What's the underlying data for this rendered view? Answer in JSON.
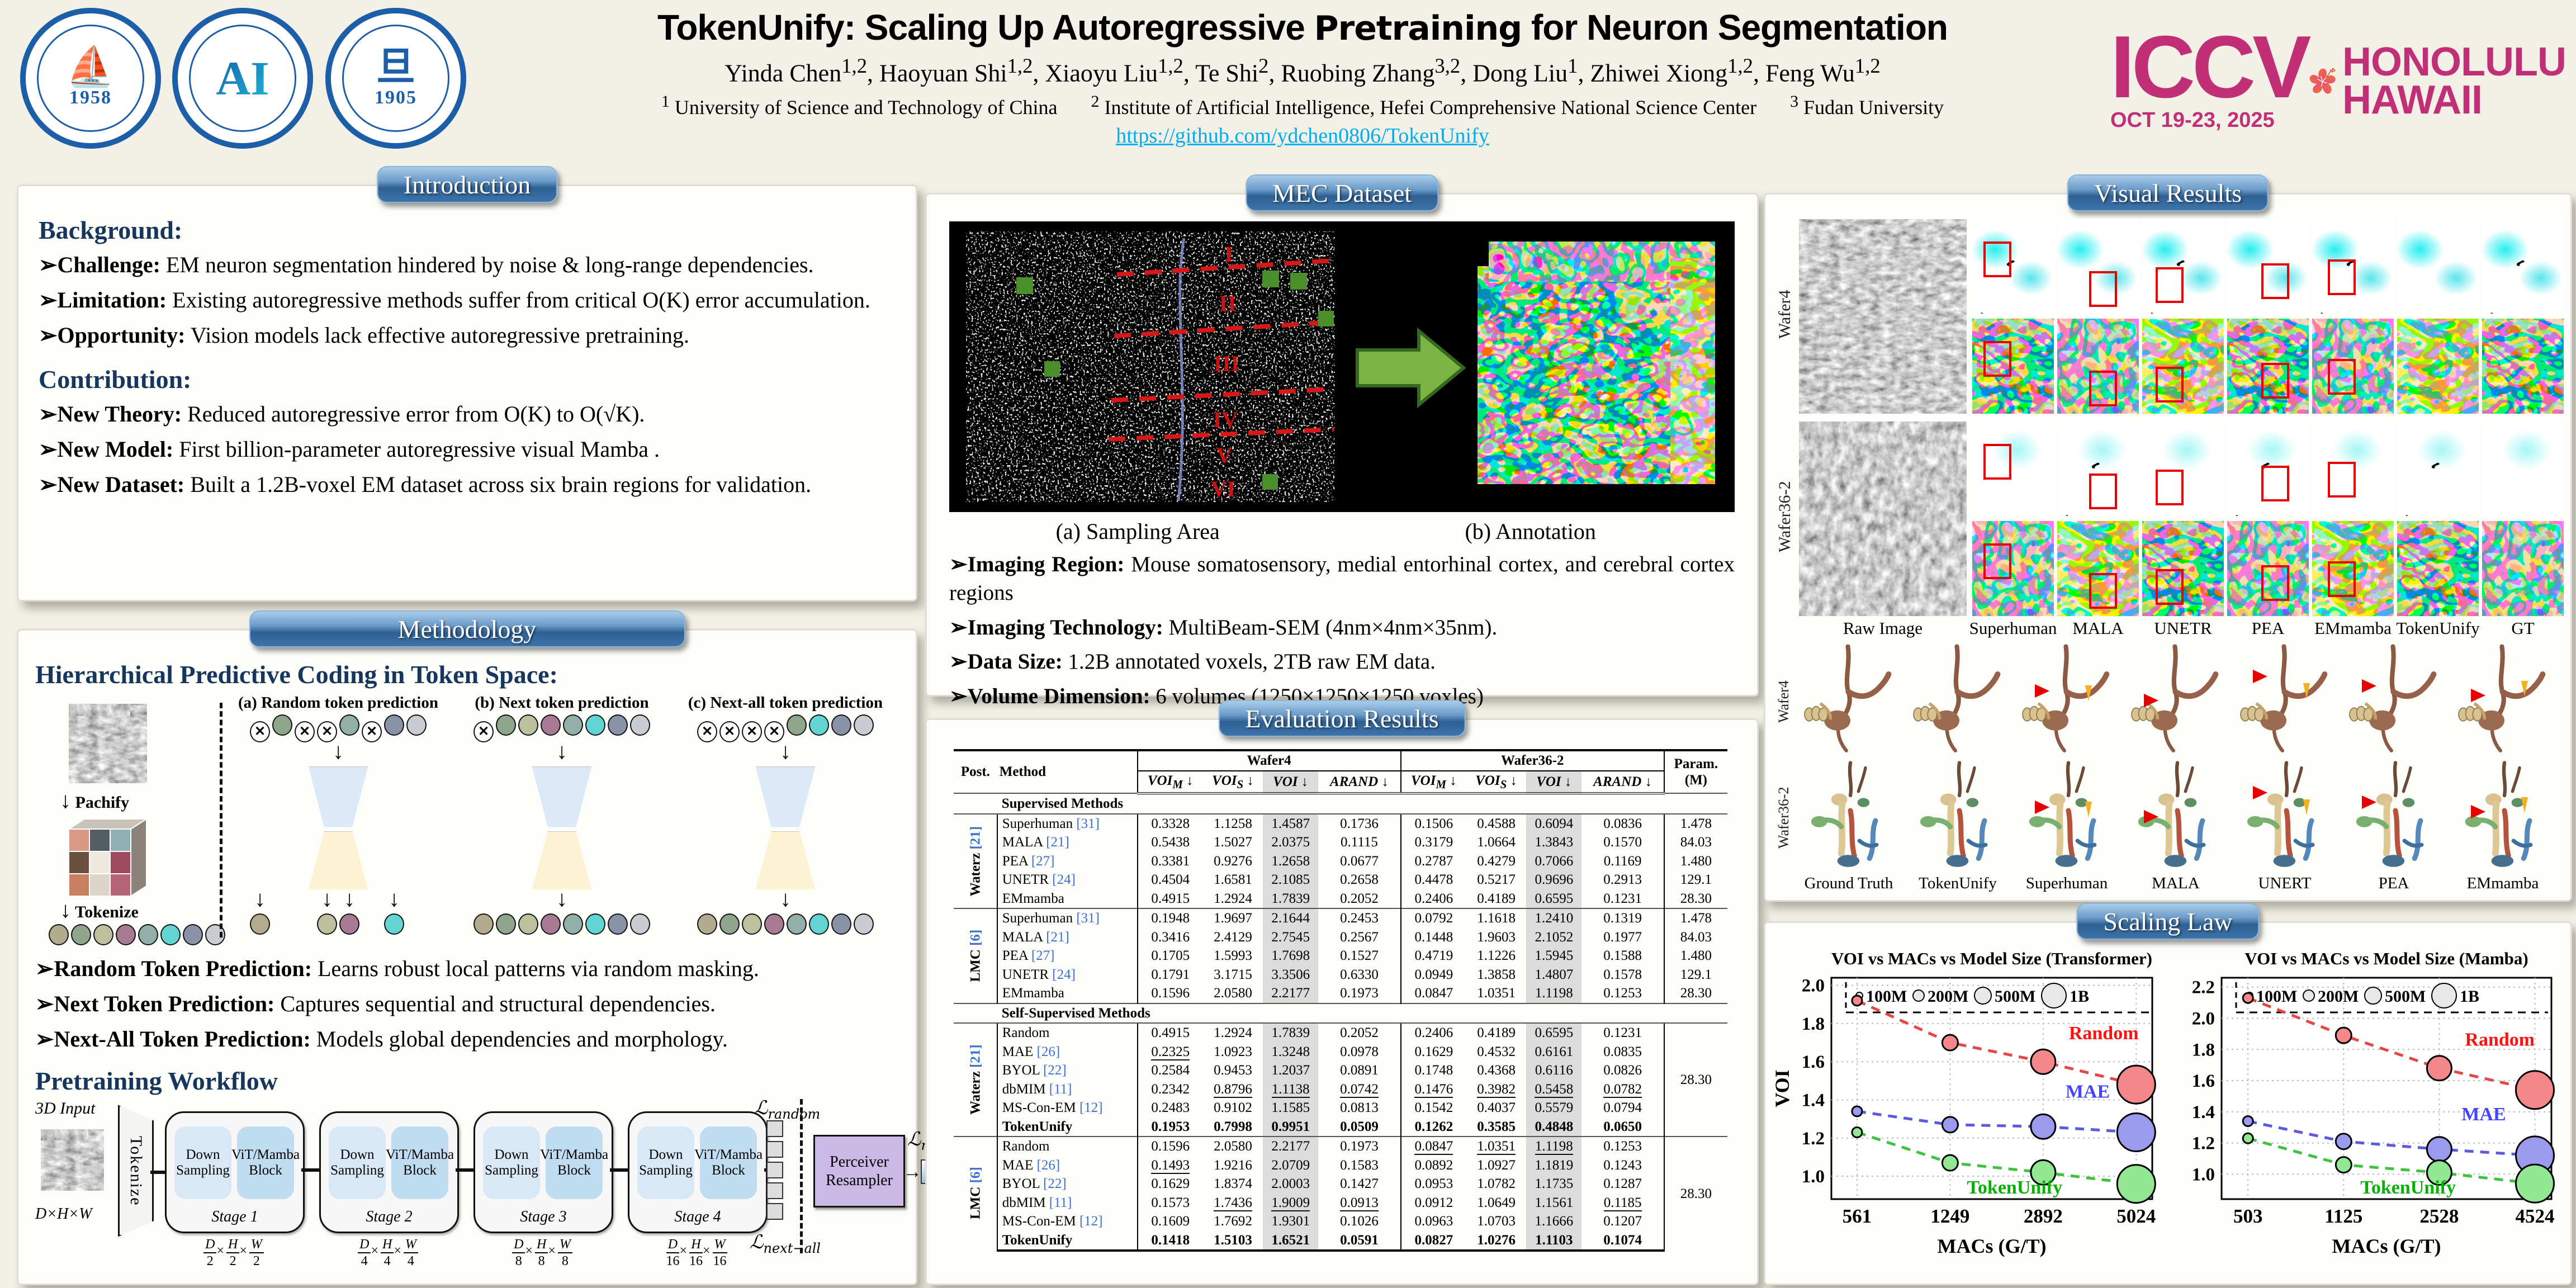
{
  "header": {
    "title_part1": "TokenUnify: Scaling Up Autoregressive",
    "title_part2": "Pretraining",
    "title_part3": "for Neuron Segmentation",
    "authors": [
      {
        "name": "Yinda Chen",
        "sup": "1,2"
      },
      {
        "name": "Haoyuan Shi",
        "sup": "1,2"
      },
      {
        "name": "Xiaoyu Liu",
        "sup": "1,2"
      },
      {
        "name": "Te Shi",
        "sup": "2"
      },
      {
        "name": "Ruobing Zhang",
        "sup": "3,2"
      },
      {
        "name": "Dong Liu",
        "sup": "1"
      },
      {
        "name": "Zhiwei Xiong",
        "sup": "1,2"
      },
      {
        "name": "Feng Wu",
        "sup": "1,2"
      }
    ],
    "affiliations": [
      {
        "sup": "1",
        "text": "University of Science and Technology of China"
      },
      {
        "sup": "2",
        "text": "Institute of Artificial Intelligence, Hefei Comprehensive National Science Center"
      },
      {
        "sup": "3",
        "text": "Fudan University"
      }
    ],
    "link": "https://github.com/ydchen0806/TokenUnify",
    "logos": [
      {
        "id": "ustc-logo",
        "glyph": "⛵",
        "year": "1958"
      },
      {
        "id": "hefei-ai-logo",
        "glyph": "AI",
        "year": ""
      },
      {
        "id": "fudan-logo",
        "glyph": "旦",
        "year": "1905"
      }
    ],
    "iccv": {
      "word": "ICCV",
      "dates": "OCT 19-23, 2025",
      "city": "HONOLULU",
      "state": "HAWAII"
    }
  },
  "section_titles": {
    "intro": "Introduction",
    "method": "Methodology",
    "dataset": "MEC Dataset",
    "eval": "Evaluation Results",
    "visual": "Visual Results",
    "scaling": "Scaling Law"
  },
  "intro": {
    "h_background": "Background:",
    "bg_bullets": [
      {
        "lead": "Challenge:",
        "text": "EM neuron segmentation hindered by noise & long-range dependencies."
      },
      {
        "lead": "Limitation:",
        "text": "Existing autoregressive methods suffer from critical O(K) error accumulation."
      },
      {
        "lead": "Opportunity:",
        "text": "Vision models lack effective autoregressive pretraining."
      }
    ],
    "h_contribution": "Contribution:",
    "con_bullets": [
      {
        "lead": "New Theory:",
        "text": "Reduced autoregressive error from O(K) to O(√K)."
      },
      {
        "lead": "New Model:",
        "text": "First billion-parameter autoregressive visual Mamba ."
      },
      {
        "lead": "New Dataset:",
        "text": "Built a 1.2B-voxel EM dataset across six brain regions for validation."
      }
    ]
  },
  "method": {
    "hpc_title": "Hierarchical Predictive Coding in Token Space:",
    "pachify": "Pachify",
    "tokenize": "Tokenize",
    "token_palette": {
      "c1": "#b3ab8e",
      "c2": "#8fa58c",
      "c3": "#bcc09c",
      "c4": "#a77b93",
      "c5": "#93afa9",
      "c6": "#62d5d3",
      "c7": "#8a92a8",
      "c8": "#c9cdd3"
    },
    "base_row": [
      "c1",
      "c2",
      "c3",
      "c4",
      "c5",
      "c6",
      "c7",
      "c8"
    ],
    "pred_columns": [
      {
        "label": "(a) Random token prediction",
        "tokens": [
          "m",
          "c2",
          "m",
          "m",
          "c5",
          "m",
          "c7",
          "c8"
        ],
        "out_mode": "slots",
        "out_slots": [
          {
            "i": 0,
            "c": "c1"
          },
          {
            "i": 3,
            "c": "c3"
          },
          {
            "i": 4,
            "c": "c4"
          },
          {
            "i": 6,
            "c": "c6"
          }
        ]
      },
      {
        "label": "(b) Next token prediction",
        "tokens": [
          "m",
          "c2",
          "c3",
          "c4",
          "c5",
          "c6",
          "c7",
          "c8"
        ],
        "out_mode": "row"
      },
      {
        "label": "(c) Next-all token prediction",
        "tokens": [
          "m",
          "m",
          "m",
          "m",
          "c2",
          "c6",
          "c7",
          "c8"
        ],
        "out_mode": "row"
      }
    ],
    "bullets": [
      {
        "lead": "Random Token Prediction:",
        "text": "Learns robust local patterns via random masking."
      },
      {
        "lead": "Next Token Prediction:",
        "text": "Captures sequential and structural dependencies."
      },
      {
        "lead": "Next-All Token Prediction:",
        "text": "Models global dependencies and morphology."
      }
    ],
    "workflow_title": "Pretraining Workflow",
    "workflow": {
      "input_label": "3D Input",
      "dims": "D×H×W",
      "tokenize": "Tokenize",
      "down": "Down Sampling",
      "vit": "ViT/Mamba Block",
      "stages": [
        {
          "name": "Stage 1",
          "denom": "2"
        },
        {
          "name": "Stage 2",
          "denom": "4"
        },
        {
          "name": "Stage 3",
          "denom": "8"
        },
        {
          "name": "Stage 4",
          "denom": "16"
        }
      ],
      "resampler": "Perceiver Resampler",
      "loss_random": {
        "main": "ℒ",
        "sub": "random"
      },
      "loss_next": {
        "main": "ℒ",
        "sub": "next"
      },
      "loss_nextall": {
        "main": "ℒ",
        "sub": "next−all"
      }
    }
  },
  "dataset": {
    "caption_a": "(a) Sampling Area",
    "caption_b": "(b) Annotation",
    "romans": [
      "I",
      "II",
      "III",
      "IV",
      "V",
      "VI"
    ],
    "bullets": [
      {
        "lead": "Imaging Region:",
        "text": "Mouse somatosensory, medial entorhinal cortex, and cerebral cortex regions"
      },
      {
        "lead": "Imaging Technology:",
        "text": "MultiBeam-SEM (4nm×4nm×35nm)."
      },
      {
        "lead": "Data Size:",
        "text": "1.2B annotated voxels, 2TB raw EM data."
      },
      {
        "lead": "Volume Dimension:",
        "text": "6 volumes (1250×1250×1250 voxles)"
      }
    ]
  },
  "eval_table": {
    "post_header": "Post.",
    "method_header": "Method",
    "wafer_groups": [
      "Wafer4",
      "Wafer36-2"
    ],
    "metrics": [
      {
        "base": "VOI",
        "sub": "M"
      },
      {
        "base": "VOI",
        "sub": "S"
      },
      {
        "base": "VOI",
        "sub": ""
      },
      {
        "base": "ARAND",
        "sub": ""
      }
    ],
    "param_header": "Param.",
    "param_unit": "(M)",
    "sections": [
      {
        "title": "Supervised Methods",
        "groups": [
          {
            "post": "Waterz",
            "post_ref": "[21]",
            "rows": [
              {
                "method": "Superhuman",
                "ref": "[31]",
                "vals": [
                  "0.3328",
                  "1.1258",
                  "1.4587",
                  "0.1736",
                  "0.1506",
                  "0.4588",
                  "0.6094",
                  "0.0836"
                ],
                "param": "1.478"
              },
              {
                "method": "MALA",
                "ref": "[21]",
                "vals": [
                  "0.5438",
                  "1.5027",
                  "2.0375",
                  "0.1115",
                  "0.3179",
                  "1.0664",
                  "1.3843",
                  "0.1570"
                ],
                "param": "84.03"
              },
              {
                "method": "PEA",
                "ref": "[27]",
                "vals": [
                  "0.3381",
                  "0.9276",
                  "1.2658",
                  "0.0677",
                  "0.2787",
                  "0.4279",
                  "0.7066",
                  "0.1169"
                ],
                "param": "1.480"
              },
              {
                "method": "UNETR",
                "ref": "[24]",
                "vals": [
                  "0.4504",
                  "1.6581",
                  "2.1085",
                  "0.2658",
                  "0.4478",
                  "0.5217",
                  "0.9696",
                  "0.2913"
                ],
                "param": "129.1"
              },
              {
                "method": "EMmamba",
                "ref": "",
                "vals": [
                  "0.4915",
                  "1.2924",
                  "1.7839",
                  "0.2052",
                  "0.2406",
                  "0.4189",
                  "0.6595",
                  "0.1231"
                ],
                "param": "28.30"
              }
            ]
          },
          {
            "post": "LMC",
            "post_ref": "[6]",
            "rows": [
              {
                "method": "Superhuman",
                "ref": "[31]",
                "vals": [
                  "0.1948",
                  "1.9697",
                  "2.1644",
                  "0.2453",
                  "0.0792",
                  "1.1618",
                  "1.2410",
                  "0.1319"
                ],
                "param": "1.478"
              },
              {
                "method": "MALA",
                "ref": "[21]",
                "vals": [
                  "0.3416",
                  "2.4129",
                  "2.7545",
                  "0.2567",
                  "0.1448",
                  "1.9603",
                  "2.1052",
                  "0.1977"
                ],
                "param": "84.03"
              },
              {
                "method": "PEA",
                "ref": "[27]",
                "vals": [
                  "0.1705",
                  "1.5993",
                  "1.7698",
                  "0.1527",
                  "0.4719",
                  "1.1226",
                  "1.5945",
                  "0.1588"
                ],
                "param": "1.480"
              },
              {
                "method": "UNETR",
                "ref": "[24]",
                "vals": [
                  "0.1791",
                  "3.1715",
                  "3.3506",
                  "0.6330",
                  "0.0949",
                  "1.3858",
                  "1.4807",
                  "0.1578"
                ],
                "param": "129.1"
              },
              {
                "method": "EMmamba",
                "ref": "",
                "vals": [
                  "0.1596",
                  "2.0580",
                  "2.2177",
                  "0.1973",
                  "0.0847",
                  "1.0351",
                  "1.1198",
                  "0.1253"
                ],
                "param": "28.30"
              }
            ]
          }
        ]
      },
      {
        "title": "Self-Supervised Methods",
        "groups": [
          {
            "post": "Waterz",
            "post_ref": "[21]",
            "param_merged": "28.30",
            "rows": [
              {
                "method": "Random",
                "ref": "",
                "vals": [
                  "0.4915",
                  "1.2924",
                  "1.7839",
                  "0.2052",
                  "0.2406",
                  "0.4189",
                  "0.6595",
                  "0.1231"
                ],
                "u": []
              },
              {
                "method": "MAE",
                "ref": "[26]",
                "vals": [
                  "0.2325",
                  "1.0923",
                  "1.3248",
                  "0.0978",
                  "0.1629",
                  "0.4532",
                  "0.6161",
                  "0.0835"
                ],
                "u": [
                  0
                ]
              },
              {
                "method": "BYOL",
                "ref": "[22]",
                "vals": [
                  "0.2584",
                  "0.9453",
                  "1.2037",
                  "0.0891",
                  "0.1748",
                  "0.4368",
                  "0.6116",
                  "0.0826"
                ],
                "u": []
              },
              {
                "method": "dbMIM",
                "ref": "[11]",
                "vals": [
                  "0.2342",
                  "0.8796",
                  "1.1138",
                  "0.0742",
                  "0.1476",
                  "0.3982",
                  "0.5458",
                  "0.0782"
                ],
                "u": [
                  1,
                  2,
                  3,
                  4,
                  5,
                  6,
                  7
                ]
              },
              {
                "method": "MS-Con-EM",
                "ref": "[12]",
                "vals": [
                  "0.2483",
                  "0.9102",
                  "1.1585",
                  "0.0813",
                  "0.1542",
                  "0.4037",
                  "0.5579",
                  "0.0794"
                ],
                "u": []
              },
              {
                "method": "TokenUnify",
                "ref": "",
                "bold": true,
                "vals": [
                  "0.1953",
                  "0.7998",
                  "0.9951",
                  "0.0509",
                  "0.1262",
                  "0.3585",
                  "0.4848",
                  "0.0650"
                ],
                "u": []
              }
            ]
          },
          {
            "post": "LMC",
            "post_ref": "[6]",
            "param_merged": "28.30",
            "rows": [
              {
                "method": "Random",
                "ref": "",
                "vals": [
                  "0.1596",
                  "2.0580",
                  "2.2177",
                  "0.1973",
                  "0.0847",
                  "1.0351",
                  "1.1198",
                  "0.1253"
                ],
                "u": [
                  4,
                  5,
                  6
                ]
              },
              {
                "method": "MAE",
                "ref": "[26]",
                "vals": [
                  "0.1493",
                  "1.9216",
                  "2.0709",
                  "0.1583",
                  "0.0892",
                  "1.0927",
                  "1.1819",
                  "0.1243"
                ],
                "u": [
                  0
                ]
              },
              {
                "method": "BYOL",
                "ref": "[22]",
                "vals": [
                  "0.1629",
                  "1.8374",
                  "2.0003",
                  "0.1427",
                  "0.0953",
                  "1.0782",
                  "1.1735",
                  "0.1287"
                ],
                "u": []
              },
              {
                "method": "dbMIM",
                "ref": "[11]",
                "vals": [
                  "0.1573",
                  "1.7436",
                  "1.9009",
                  "0.0913",
                  "0.0912",
                  "1.0649",
                  "1.1561",
                  "0.1185"
                ],
                "u": [
                  1,
                  2,
                  3,
                  7
                ]
              },
              {
                "method": "MS-Con-EM",
                "ref": "[12]",
                "vals": [
                  "0.1609",
                  "1.7692",
                  "1.9301",
                  "0.1026",
                  "0.0963",
                  "1.0703",
                  "1.1666",
                  "0.1207"
                ],
                "u": []
              },
              {
                "method": "TokenUnify",
                "ref": "",
                "bold": true,
                "vals": [
                  "0.1418",
                  "1.5103",
                  "1.6521",
                  "0.0591",
                  "0.0827",
                  "1.0276",
                  "1.1103",
                  "0.1074"
                ],
                "u": []
              }
            ]
          }
        ]
      }
    ]
  },
  "visual": {
    "row_labels": [
      "Wafer4",
      "Wafer36-2"
    ],
    "col_labels": [
      "Raw Image",
      "Superhuman",
      "MALA",
      "UNETR",
      "PEA",
      "EMmamba",
      "TokenUnify",
      "GT"
    ],
    "neuron_row_labels": [
      "Wafer4",
      "Wafer36-2"
    ],
    "neuron_labels": [
      "Ground Truth",
      "TokenUnify",
      "Superhuman",
      "MALA",
      "UNERT",
      "PEA",
      "EMmamba"
    ]
  },
  "chart_data": [
    {
      "type": "scatter",
      "title": "VOI vs MACs vs Model Size (Transformer)",
      "xlabel": "MACs (G/T)",
      "ylabel": "VOI",
      "x_ticks": [
        "561",
        "1249",
        "2892",
        "5024"
      ],
      "ylim": [
        0.88,
        2.04
      ],
      "yticks": [
        1.0,
        1.2,
        1.4,
        1.6,
        1.8,
        2.0
      ],
      "bubble_legend": [
        "100M",
        "200M",
        "500M",
        "1B"
      ],
      "grid": true,
      "legend_position": "top",
      "series": [
        {
          "name": "Random",
          "label_color": "#ff1111",
          "line": "#e84545",
          "fill": "#f4878a",
          "values": [
            1.92,
            1.7,
            1.6,
            1.48
          ]
        },
        {
          "name": "MAE",
          "label_color": "#4444ff",
          "line": "#5b5be0",
          "fill": "#9a9aee",
          "values": [
            1.34,
            1.27,
            1.26,
            1.23
          ]
        },
        {
          "name": "TokenUnify",
          "label_color": "#00b300",
          "line": "#3cc43c",
          "fill": "#92e892",
          "values": [
            1.23,
            1.07,
            1.02,
            0.96
          ]
        }
      ]
    },
    {
      "type": "scatter",
      "title": "VOI vs MACs vs Model Size (Mamba)",
      "xlabel": "MACs (G/T)",
      "ylabel": "",
      "x_ticks": [
        "503",
        "1125",
        "2528",
        "4524"
      ],
      "ylim": [
        0.84,
        2.26
      ],
      "yticks": [
        1.0,
        1.2,
        1.4,
        1.6,
        1.8,
        2.0,
        2.2
      ],
      "bubble_legend": [
        "100M",
        "200M",
        "500M",
        "1B"
      ],
      "grid": true,
      "legend_position": "top",
      "series": [
        {
          "name": "Random",
          "label_color": "#ff1111",
          "line": "#e84545",
          "fill": "#f4878a",
          "values": [
            2.13,
            1.89,
            1.68,
            1.54
          ]
        },
        {
          "name": "MAE",
          "label_color": "#4444ff",
          "line": "#5b5be0",
          "fill": "#9a9aee",
          "values": [
            1.34,
            1.21,
            1.16,
            1.12
          ]
        },
        {
          "name": "TokenUnify",
          "label_color": "#00b300",
          "line": "#3cc43c",
          "fill": "#92e892",
          "values": [
            1.23,
            1.06,
            1.01,
            0.94
          ]
        }
      ]
    }
  ]
}
